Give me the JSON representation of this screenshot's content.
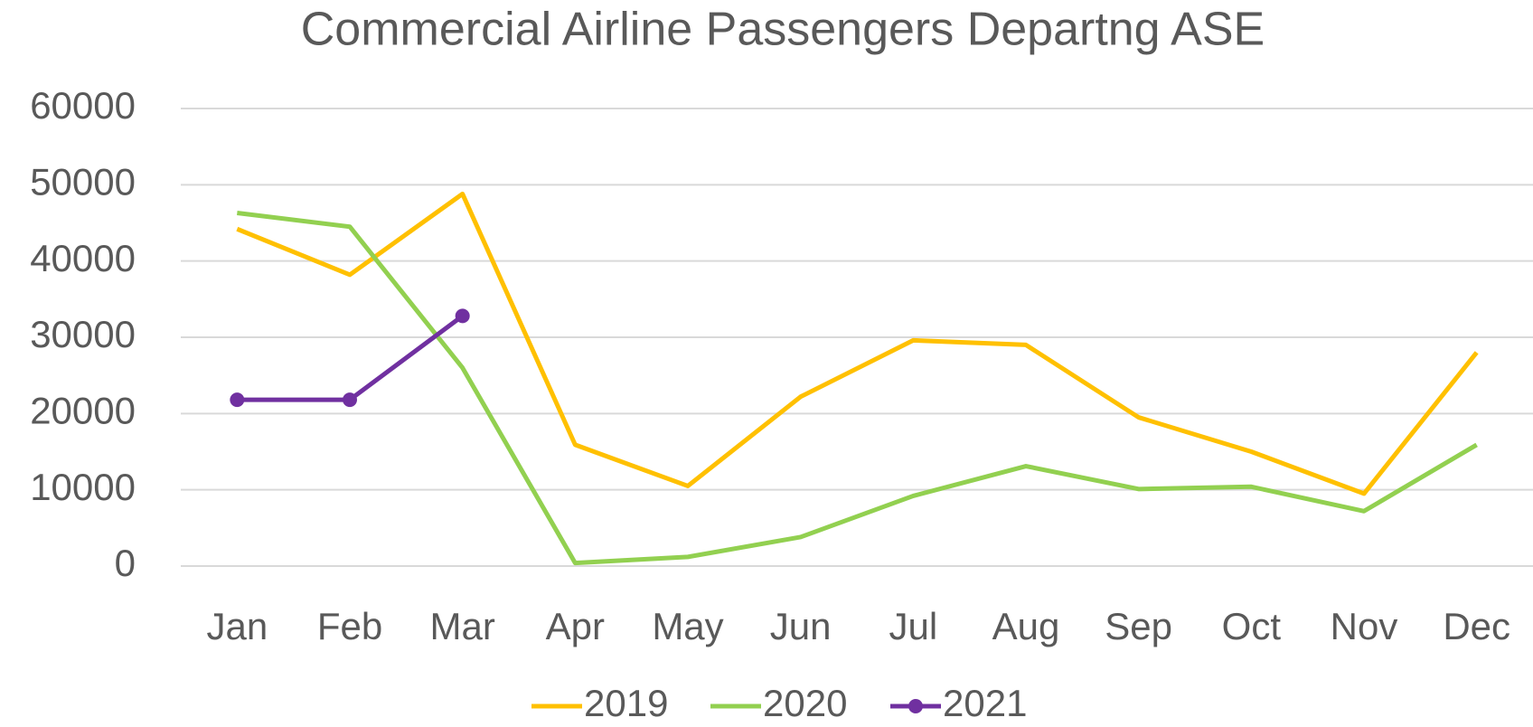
{
  "chart_data": {
    "type": "line",
    "title": "Commercial Airline Passengers Departng ASE",
    "categories": [
      "Jan",
      "Feb",
      "Mar",
      "Apr",
      "May",
      "Jun",
      "Jul",
      "Aug",
      "Sep",
      "Oct",
      "Nov",
      "Dec"
    ],
    "series": [
      {
        "name": "2019",
        "color": "#ffc000",
        "markers": false,
        "values": [
          44200,
          38200,
          48800,
          15900,
          10500,
          22200,
          29600,
          29000,
          19500,
          15000,
          9500,
          28000
        ]
      },
      {
        "name": "2020",
        "color": "#92d050",
        "markers": false,
        "values": [
          46300,
          44500,
          26000,
          400,
          1200,
          3800,
          9200,
          13100,
          10100,
          10400,
          7200,
          15900
        ]
      },
      {
        "name": "2021",
        "color": "#7030a0",
        "markers": true,
        "values": [
          21800,
          21800,
          32800,
          null,
          null,
          null,
          null,
          null,
          null,
          null,
          null,
          null
        ]
      }
    ],
    "ylim": [
      0,
      60000
    ],
    "yticks": [
      0,
      10000,
      20000,
      30000,
      40000,
      50000,
      60000
    ],
    "grid": true,
    "legend": "bottom"
  }
}
